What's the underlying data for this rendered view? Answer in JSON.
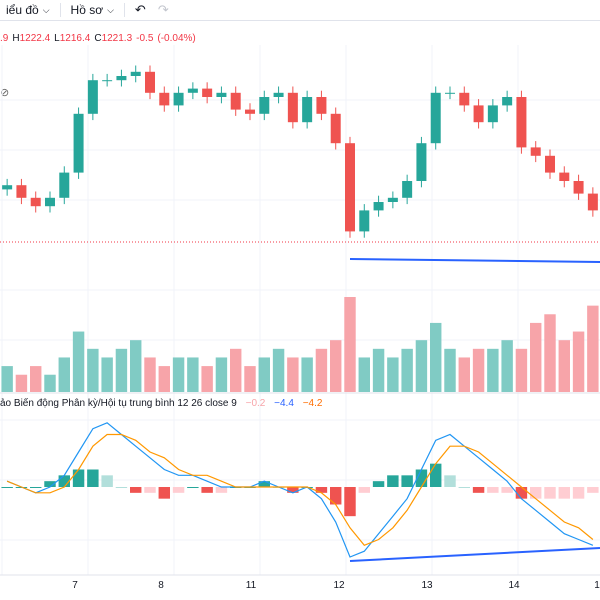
{
  "toolbar": {
    "indicators_label": "iểu đồ",
    "template_label": "Hồ sơ",
    "undo_icon": "undo-icon",
    "redo_icon": "redo-icon"
  },
  "ohlc": {
    "open_partial": ".9",
    "high_label": "H",
    "high": "1222.4",
    "low_label": "L",
    "low": "1216.4",
    "close_label": "C",
    "close": "1221.3",
    "change": "-0.5",
    "change_pct": "(-0.04%)"
  },
  "macd": {
    "legend": "ảo Biến động Phân kỳ/Hội tụ trung bình 12 26 close 9",
    "hist": "−0.2",
    "macd": "−4.4",
    "signal": "−4.2"
  },
  "x_axis": [
    "7",
    "8",
    "11",
    "12",
    "13",
    "14",
    "1"
  ],
  "colors": {
    "up": "#26a69a",
    "down": "#ef5350",
    "volume_up": "#80cbc4",
    "volume_down": "#f7a4a9",
    "macd_line": "#2196f3",
    "signal_line": "#ff9800",
    "trend_line": "#2962ff"
  },
  "chart_data": [
    {
      "type": "candlestick",
      "series": [
        {
          "name": "",
          "close": [
            1209,
            1206,
            1204,
            1206,
            1212,
            1226,
            1234,
            1234,
            1235,
            1236,
            1231,
            1228,
            1231,
            1232,
            1230,
            1231,
            1227,
            1226,
            1230,
            1231,
            1224,
            1230,
            1226,
            1219,
            1198,
            1203,
            1205,
            1206,
            1210,
            1219,
            1231,
            1231,
            1228,
            1224,
            1228,
            1230,
            1218,
            1216,
            1212,
            1210,
            1207,
            1203
          ]
        }
      ]
    },
    {
      "type": "bar",
      "title": "volume",
      "series": [
        {
          "name": "",
          "values": [
            3,
            2,
            3,
            2,
            4,
            7,
            5,
            4,
            5,
            6,
            4,
            3,
            4,
            4,
            3,
            4,
            5,
            3,
            4,
            5,
            4,
            4,
            5,
            6,
            11,
            4,
            5,
            4,
            5,
            6,
            8,
            5,
            4,
            5,
            5,
            6,
            5,
            8,
            9,
            6,
            7,
            10
          ]
        }
      ]
    },
    {
      "type": "line",
      "title": "macd",
      "series": [
        {
          "name": "",
          "values": [
            1,
            0,
            -1,
            0,
            2,
            6,
            10,
            11,
            9,
            7,
            5,
            3,
            2,
            2,
            1,
            0,
            0,
            0,
            1,
            0,
            -1,
            0,
            -2,
            -6,
            -12,
            -11,
            -8,
            -5,
            -2,
            3,
            8,
            9,
            7,
            5,
            3,
            1,
            -2,
            -4,
            -6,
            -8,
            -9,
            -10
          ]
        },
        {
          "name": "",
          "values": [
            1,
            0,
            -1,
            -1,
            0,
            3,
            7,
            9,
            9,
            8,
            6,
            5,
            3,
            2,
            2,
            1,
            0,
            0,
            0,
            0,
            0,
            0,
            -1,
            -3,
            -7,
            -10,
            -9,
            -7,
            -4,
            0,
            4,
            7,
            7,
            6,
            4,
            2,
            0,
            -2,
            -4,
            -6,
            -7,
            -9
          ]
        }
      ]
    }
  ]
}
